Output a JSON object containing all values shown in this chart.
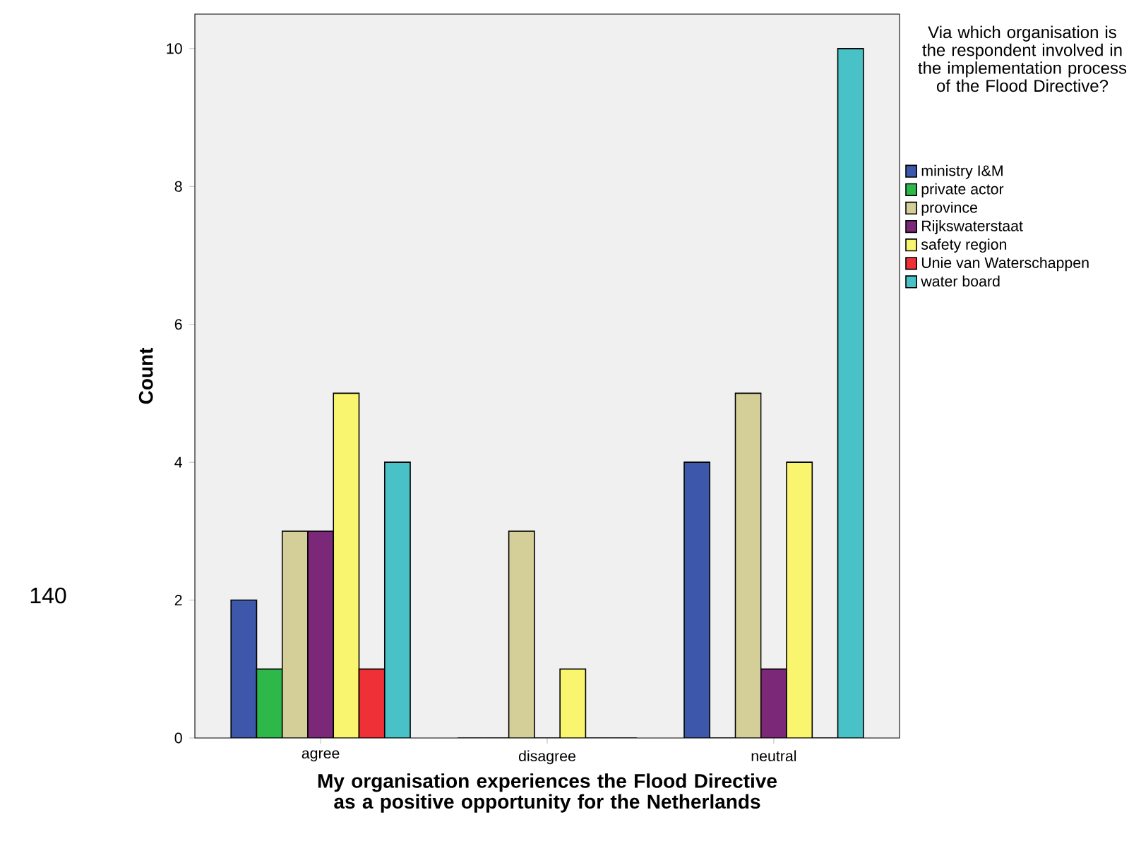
{
  "chart_data": {
    "type": "bar",
    "xlabel": "My organisation experiences the Flood Directive as a positive opportunity for the Netherlands",
    "ylabel": "Count",
    "legend_title": "Via which organisation is the respondent involved in the implementation process of the Flood Directive?",
    "categories": [
      "agree",
      "disagree",
      "neutral"
    ],
    "series": [
      {
        "name": "ministry I&M",
        "color": "#3d57ab",
        "values": [
          2,
          0,
          4
        ]
      },
      {
        "name": "private actor",
        "color": "#2eb84a",
        "values": [
          1,
          0,
          0
        ]
      },
      {
        "name": "province",
        "color": "#d4cf98",
        "values": [
          3,
          3,
          5
        ]
      },
      {
        "name": "Rijkswaterstaat",
        "color": "#7c2878",
        "values": [
          3,
          0,
          1
        ]
      },
      {
        "name": "safety region",
        "color": "#f9f56e",
        "values": [
          5,
          1,
          4
        ]
      },
      {
        "name": "Unie van Waterschappen",
        "color": "#ef3036",
        "values": [
          1,
          0,
          0
        ]
      },
      {
        "name": "water board",
        "color": "#48c2c6",
        "values": [
          4,
          0,
          10
        ]
      }
    ],
    "ylim": [
      0,
      10.5
    ],
    "yticks": [
      0,
      2,
      4,
      6,
      8,
      10
    ],
    "grid": false,
    "legend": "right",
    "annotations": [
      "140"
    ]
  }
}
